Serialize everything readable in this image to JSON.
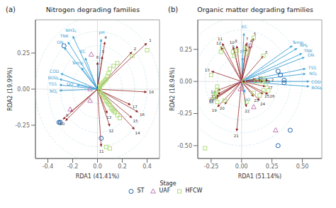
{
  "legend_title": "Stage",
  "chart_data": [
    {
      "type": "scatter",
      "panel_label": "(a)",
      "title": "Nitrogen degrading families",
      "x_label": "RDA1 (41.41%)",
      "y_label": "RDA2 (19.99%)",
      "xlim": [
        -0.5,
        0.5
      ],
      "ylim": [
        -0.48,
        0.48
      ],
      "xticks": [
        -0.4,
        -0.2,
        {
          "value": 0,
          "label": "0.0"
        },
        0.2,
        0.4
      ],
      "yticks": [
        -0.25,
        {
          "value": 0,
          "label": "0.00"
        },
        0.25
      ],
      "origin": [
        0,
        0
      ],
      "circles": [
        0.1,
        0.2,
        0.3,
        0.4,
        0.5
      ],
      "circle_color": "#add8e6",
      "series": [
        {
          "name": "ST",
          "color": "#2166ac",
          "marker": "circle",
          "x": [
            -0.27,
            -0.3,
            -0.31,
            0.03
          ],
          "values": [
            0.3,
            -0.23,
            -0.23,
            -0.34
          ]
        },
        {
          "name": "UAF",
          "color": "#c278b4",
          "marker": "triangle",
          "x": [
            -0.05,
            -0.06,
            -0.06,
            -0.22
          ],
          "values": [
            0.24,
            0.0,
            -0.08,
            -0.14
          ]
        },
        {
          "name": "HFCW",
          "color": "#a8d96c",
          "marker": "square",
          "x": [
            0.4,
            0.28,
            0.16,
            0.13,
            0.1,
            0.09,
            0.08,
            0.07,
            0.06,
            0.05,
            0.04,
            0.03,
            0.02,
            0.02,
            0.02,
            0.02,
            0.03,
            0.04,
            0.05,
            0.06,
            0.07,
            0.08,
            0.09,
            0.1,
            0.11,
            0.12,
            0.13,
            0.14,
            0.16,
            0.18,
            0.07,
            0.1
          ],
          "values": [
            0.27,
            0.23,
            0.18,
            0.16,
            0.14,
            0.11,
            0.09,
            0.07,
            0.06,
            0.05,
            0.04,
            0.03,
            0.02,
            0.01,
            0.0,
            -0.01,
            -0.03,
            -0.04,
            -0.05,
            -0.06,
            -0.08,
            -0.09,
            -0.1,
            -0.11,
            -0.13,
            -0.14,
            -0.15,
            -0.16,
            -0.18,
            -0.2,
            -0.4,
            -0.41
          ]
        }
      ],
      "arrows": [
        {
          "color": "#3a9fd6",
          "items": [
            {
              "label": "NH3",
              "sub": "3",
              "x": -0.2,
              "y": 0.37
            },
            {
              "label": "TNK",
              "x": -0.24,
              "y": 0.33
            },
            {
              "label": "ON",
              "x": -0.27,
              "y": 0.29
            },
            {
              "label": "EC",
              "x": -0.1,
              "y": 0.22
            },
            {
              "label": "Temp",
              "x": -0.13,
              "y": 0.15
            },
            {
              "label": "COD",
              "x": -0.3,
              "y": 0.11
            },
            {
              "label": "BOD",
              "sub": "5",
              "x": -0.31,
              "y": 0.07
            },
            {
              "label": "TSS",
              "x": -0.31,
              "y": 0.03
            },
            {
              "label": "NO",
              "sub": "2",
              "x": -0.31,
              "y": -0.01
            },
            {
              "label": "DO",
              "x": -0.17,
              "y": 0.03
            },
            {
              "label": "pH",
              "x": 0.03,
              "y": 0.35
            }
          ]
        },
        {
          "color": "#8b1a1a",
          "label_color": "#333333",
          "line_style": "dashed",
          "items": [
            {
              "label": "1",
              "x": 0.4,
              "y": 0.32
            },
            {
              "label": "2",
              "x": 0.28,
              "y": 0.26
            },
            {
              "label": "4",
              "x": 0.06,
              "y": 0.33
            },
            {
              "label": "5",
              "x": 0.04,
              "y": 0.23
            },
            {
              "label": "6",
              "x": 0.0,
              "y": 0.19
            },
            {
              "label": "8",
              "x": -0.28,
              "y": -0.21
            },
            {
              "label": "9",
              "x": -0.22,
              "y": -0.16
            },
            {
              "label": "10",
              "x": -0.26,
              "y": -0.22
            },
            {
              "label": "11",
              "x": 0.03,
              "y": -0.4
            },
            {
              "label": "12",
              "x": 0.1,
              "y": -0.26
            },
            {
              "label": "13",
              "x": 0.08,
              "y": -0.17
            },
            {
              "label": "14",
              "x": 0.3,
              "y": -0.28
            },
            {
              "label": "15",
              "x": 0.28,
              "y": -0.2
            },
            {
              "label": "16",
              "x": 0.33,
              "y": -0.16
            },
            {
              "label": "17",
              "x": 0.27,
              "y": -0.11
            },
            {
              "label": "18",
              "x": 0.4,
              "y": -0.02
            }
          ]
        }
      ]
    },
    {
      "type": "scatter",
      "panel_label": "(b)",
      "title": "Organic matter degrading families",
      "x_label": "RDA1 (51.14%)",
      "y_label": "RDA2 (18.94%)",
      "xlim": [
        -0.36,
        0.66
      ],
      "ylim": [
        -0.6,
        0.48
      ],
      "xticks": [
        -0.25,
        {
          "value": 0,
          "label": "0.00"
        },
        0.25,
        {
          "value": 0.5,
          "label": "0.50"
        }
      ],
      "yticks": [
        {
          "value": -0.5,
          "label": "-0.50"
        },
        -0.25,
        {
          "value": 0,
          "label": "0.00"
        },
        0.25
      ],
      "origin": [
        0,
        0
      ],
      "circles": [
        0.1,
        0.2,
        0.3,
        0.4,
        0.5
      ],
      "circle_color": "#add8e6",
      "series": [
        {
          "name": "ST",
          "color": "#2166ac",
          "marker": "circle",
          "x": [
            0.3,
            0.32,
            0.35,
            0.35,
            0.3,
            0.4
          ],
          "values": [
            0.08,
            0.05,
            0.01,
            -0.01,
            -0.5,
            -0.38
          ]
        },
        {
          "name": "UAF",
          "color": "#c278b4",
          "marker": "triangle",
          "x": [
            0.07,
            -0.01,
            -0.01,
            0.1,
            0.28
          ],
          "values": [
            0.28,
            0.0,
            -0.06,
            -0.2,
            -0.38
          ]
        },
        {
          "name": "HFCW",
          "color": "#a8d96c",
          "marker": "square",
          "x": [
            0.1,
            0.04,
            0.04,
            -0.04,
            -0.06,
            -0.07,
            -0.16,
            -0.17,
            0.18,
            -0.25,
            -0.2,
            -0.2,
            -0.21,
            -0.22,
            -0.22,
            -0.2,
            -0.14,
            0.04,
            0.1,
            0.15,
            0.18,
            0.22,
            0.2,
            0.18,
            0.12,
            0.17,
            0.02,
            -0.3
          ],
          "values": [
            0.34,
            0.26,
            0.22,
            0.24,
            0.2,
            0.23,
            0.26,
            0.23,
            0.2,
            0.05,
            -0.04,
            -0.07,
            -0.09,
            -0.11,
            -0.12,
            -0.16,
            -0.15,
            -0.16,
            -0.09,
            -0.11,
            -0.07,
            -0.07,
            -0.02,
            0.02,
            0.0,
            0.0,
            0.0,
            -0.52
          ]
        }
      ],
      "arrows": [
        {
          "color": "#3a9fd6",
          "items": [
            {
              "label": "EC",
              "x": 0.02,
              "y": 0.38
            },
            {
              "label": "Temp",
              "x": 0.42,
              "y": 0.28
            },
            {
              "label": "NH",
              "sub": "3",
              "x": 0.46,
              "y": 0.26
            },
            {
              "label": "TNK",
              "x": 0.5,
              "y": 0.22
            },
            {
              "label": "ON",
              "x": 0.52,
              "y": 0.19
            },
            {
              "label": "TSS",
              "x": 0.53,
              "y": 0.1
            },
            {
              "label": "NO",
              "sub": "2",
              "x": 0.53,
              "y": 0.06
            },
            {
              "label": "COD",
              "x": 0.56,
              "y": 0.0
            },
            {
              "label": "BOD",
              "sub": "5",
              "x": 0.56,
              "y": -0.04
            },
            {
              "label": "DO",
              "x": 0.03,
              "y": -0.09
            },
            {
              "label": "pH",
              "x": 0.01,
              "y": 0.19
            }
          ]
        },
        {
          "color": "#8b1a1a",
          "label_color": "#333333",
          "line_style": "dashed",
          "items": [
            {
              "label": "1",
              "x": 0.17,
              "y": 0.01
            },
            {
              "label": "2",
              "x": 0.22,
              "y": 0.01
            },
            {
              "label": "3",
              "x": 0.18,
              "y": 0.2
            },
            {
              "label": "4",
              "x": 0.07,
              "y": 0.28
            },
            {
              "label": "5",
              "x": 0.1,
              "y": 0.34
            },
            {
              "label": "6",
              "x": 0.04,
              "y": 0.26
            },
            {
              "label": "7",
              "x": 0.04,
              "y": 0.3
            },
            {
              "label": "8",
              "x": -0.04,
              "y": 0.28
            },
            {
              "label": "9",
              "x": -0.06,
              "y": 0.24
            },
            {
              "label": "10",
              "x": -0.07,
              "y": 0.27
            },
            {
              "label": "11",
              "x": -0.16,
              "y": 0.3
            },
            {
              "label": "12",
              "x": -0.17,
              "y": 0.27
            },
            {
              "label": "13",
              "x": -0.25,
              "y": 0.08
            },
            {
              "label": "14",
              "x": -0.2,
              "y": -0.07
            },
            {
              "label": "15",
              "x": -0.2,
              "y": -0.1
            },
            {
              "label": "16",
              "x": -0.21,
              "y": -0.12
            },
            {
              "label": "17",
              "x": -0.22,
              "y": -0.13
            },
            {
              "label": "18",
              "x": -0.22,
              "y": -0.14
            },
            {
              "label": "19",
              "x": -0.2,
              "y": -0.2
            },
            {
              "label": "20",
              "x": -0.14,
              "y": -0.18
            },
            {
              "label": "21",
              "x": -0.04,
              "y": -0.39
            },
            {
              "label": "22",
              "x": 0.04,
              "y": -0.2
            },
            {
              "label": "23",
              "x": 0.1,
              "y": -0.12
            },
            {
              "label": "24",
              "x": 0.15,
              "y": -0.15
            },
            {
              "label": "25",
              "x": 0.18,
              "y": -0.1
            },
            {
              "label": "26",
              "x": 0.22,
              "y": -0.1
            },
            {
              "label": "27",
              "x": 0.2,
              "y": -0.04
            },
            {
              "label": "28",
              "x": 0.18,
              "y": 0.0
            },
            {
              "label": "29",
              "x": 0.12,
              "y": 0.02
            }
          ]
        }
      ]
    }
  ]
}
